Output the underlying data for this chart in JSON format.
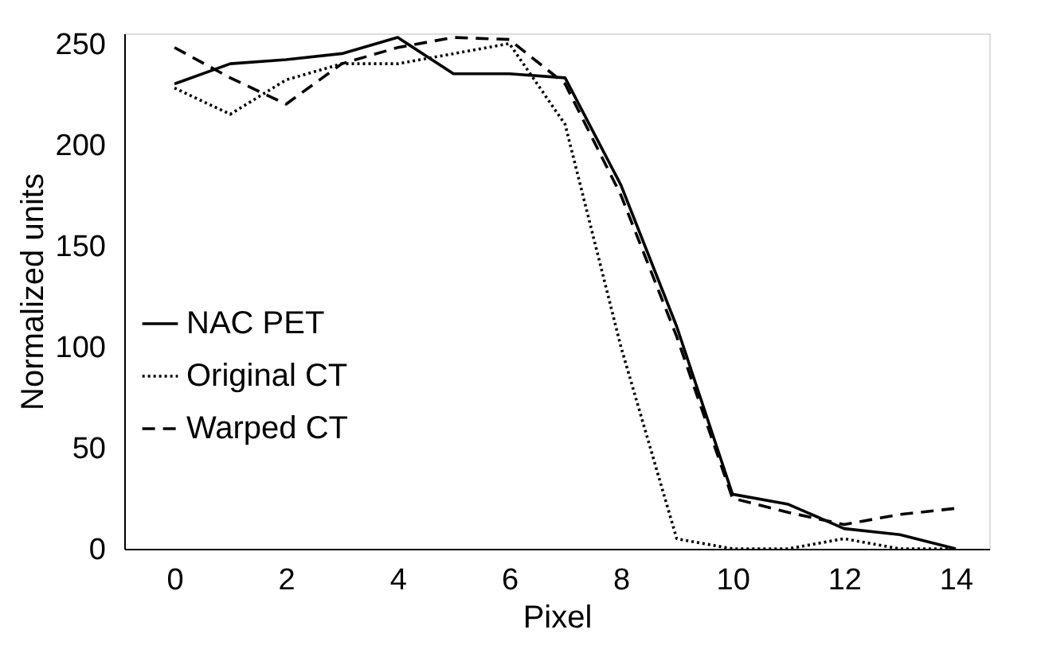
{
  "chart_data": {
    "type": "line",
    "xlabel": "Pixel",
    "ylabel": "Normalized units",
    "x": [
      0,
      1,
      2,
      3,
      4,
      5,
      6,
      7,
      8,
      9,
      10,
      11,
      12,
      13,
      14
    ],
    "series": [
      {
        "name": "NAC PET",
        "color": "#000000",
        "line_style": "solid",
        "values": [
          230,
          240,
          242,
          245,
          253,
          235,
          235,
          233,
          180,
          110,
          27,
          22,
          10,
          7,
          0
        ]
      },
      {
        "name": "Original CT",
        "color": "#000000",
        "line_style": "dotted",
        "values": [
          228,
          215,
          232,
          240,
          240,
          245,
          250,
          210,
          100,
          5,
          0,
          0,
          5,
          0,
          0
        ]
      },
      {
        "name": "Warped CT",
        "color": "#000000",
        "line_style": "dashed",
        "values": [
          248,
          233,
          220,
          240,
          248,
          253,
          252,
          230,
          175,
          105,
          25,
          18,
          12,
          17,
          20
        ]
      }
    ],
    "xlim": [
      -0.9,
      14.6
    ],
    "xticks": [
      0,
      2,
      4,
      6,
      8,
      10,
      12,
      14
    ],
    "ylim": [
      0,
      255
    ],
    "yticks": [
      0,
      50,
      100,
      150,
      200,
      250
    ],
    "grid": false,
    "legend": "left",
    "marker": "none"
  }
}
